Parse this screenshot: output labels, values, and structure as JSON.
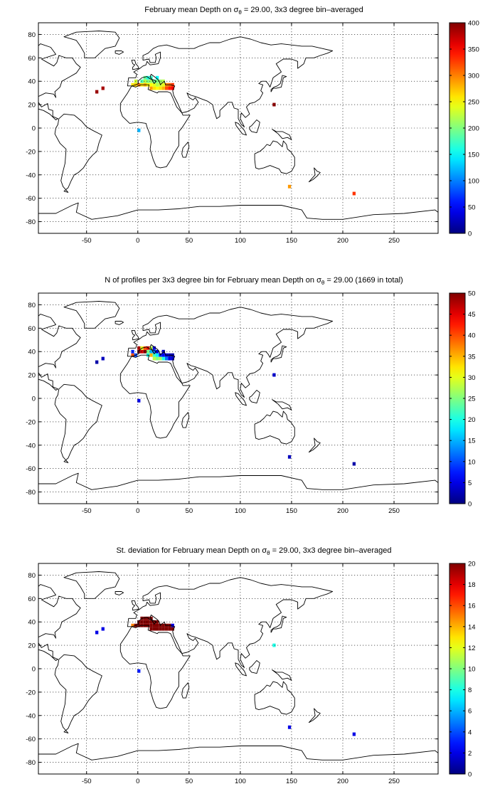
{
  "x_ticks": [
    "-50",
    "0",
    "50",
    "100",
    "150",
    "200",
    "250"
  ],
  "y_ticks": [
    "80",
    "60",
    "40",
    "20",
    "0",
    "-20",
    "-40",
    "-60",
    "-80"
  ],
  "map_extent": {
    "lon": [
      -97,
      293
    ],
    "lat": [
      -90,
      90
    ],
    "grid": true,
    "coastlines": true
  },
  "colormap": "jet",
  "chart_data": [
    {
      "type": "heatmap",
      "title": {
        "pre": "February mean Depth on ",
        "sym": "σ",
        "sub": "θ",
        "post": " = 29.00, 3x3 degree bin–averaged"
      },
      "clim": [
        0,
        400
      ],
      "colorbar_ticks": [
        "400",
        "350",
        "300",
        "250",
        "200",
        "150",
        "100",
        "50",
        "0"
      ],
      "cells": [
        {
          "lon": -5,
          "lat": 37,
          "v": 260
        },
        {
          "lon": -2,
          "lat": 37,
          "v": 270
        },
        {
          "lon": -2,
          "lat": 40,
          "v": 230
        },
        {
          "lon": 1,
          "lat": 37,
          "v": 300
        },
        {
          "lon": 4,
          "lat": 37,
          "v": 260
        },
        {
          "lon": 4,
          "lat": 40,
          "v": 180
        },
        {
          "lon": 7,
          "lat": 37,
          "v": 280
        },
        {
          "lon": 7,
          "lat": 40,
          "v": 220
        },
        {
          "lon": 7,
          "lat": 43,
          "v": 190
        },
        {
          "lon": 10,
          "lat": 37,
          "v": 250
        },
        {
          "lon": 10,
          "lat": 40,
          "v": 200
        },
        {
          "lon": 10,
          "lat": 43,
          "v": 160
        },
        {
          "lon": 13,
          "lat": 34,
          "v": 290
        },
        {
          "lon": 13,
          "lat": 37,
          "v": 250
        },
        {
          "lon": 13,
          "lat": 40,
          "v": 210
        },
        {
          "lon": 13,
          "lat": 43,
          "v": 170
        },
        {
          "lon": 16,
          "lat": 34,
          "v": 260
        },
        {
          "lon": 16,
          "lat": 37,
          "v": 240
        },
        {
          "lon": 16,
          "lat": 40,
          "v": 190
        },
        {
          "lon": 19,
          "lat": 34,
          "v": 250
        },
        {
          "lon": 19,
          "lat": 37,
          "v": 220
        },
        {
          "lon": 19,
          "lat": 40,
          "v": 200
        },
        {
          "lon": 19,
          "lat": 43,
          "v": 150
        },
        {
          "lon": 22,
          "lat": 34,
          "v": 260
        },
        {
          "lon": 22,
          "lat": 37,
          "v": 230
        },
        {
          "lon": 22,
          "lat": 40,
          "v": 210
        },
        {
          "lon": 25,
          "lat": 34,
          "v": 280
        },
        {
          "lon": 25,
          "lat": 37,
          "v": 240
        },
        {
          "lon": 25,
          "lat": 40,
          "v": 220
        },
        {
          "lon": 28,
          "lat": 34,
          "v": 320
        },
        {
          "lon": 28,
          "lat": 37,
          "v": 300
        },
        {
          "lon": 31,
          "lat": 34,
          "v": 340
        },
        {
          "lon": 31,
          "lat": 37,
          "v": 310
        },
        {
          "lon": 34,
          "lat": 34,
          "v": 350
        },
        {
          "lon": 34,
          "lat": 37,
          "v": 330
        },
        {
          "lon": -40,
          "lat": 31,
          "v": 390
        },
        {
          "lon": -34,
          "lat": 34,
          "v": 385
        },
        {
          "lon": 133,
          "lat": 20,
          "v": 395
        },
        {
          "lon": 1,
          "lat": -2,
          "v": 120
        },
        {
          "lon": 148,
          "lat": -50,
          "v": 290
        },
        {
          "lon": 211,
          "lat": -56,
          "v": 330
        }
      ]
    },
    {
      "type": "heatmap",
      "title": {
        "pre": "N of profiles per 3x3 degree bin for February mean Depth on ",
        "sym": "σ",
        "sub": "θ",
        "post": " = 29.00 (1669 in total)"
      },
      "clim": [
        0,
        50
      ],
      "colorbar_ticks": [
        "50",
        "45",
        "40",
        "35",
        "30",
        "25",
        "20",
        "15",
        "10",
        "5",
        "0"
      ],
      "cells": [
        {
          "lon": -5,
          "lat": 37,
          "v": 40
        },
        {
          "lon": -5,
          "lat": 40,
          "v": 8
        },
        {
          "lon": -2,
          "lat": 37,
          "v": 10
        },
        {
          "lon": 1,
          "lat": 40,
          "v": 50
        },
        {
          "lon": 1,
          "lat": 43,
          "v": 48
        },
        {
          "lon": 4,
          "lat": 40,
          "v": 46
        },
        {
          "lon": 4,
          "lat": 43,
          "v": 30
        },
        {
          "lon": 7,
          "lat": 40,
          "v": 50
        },
        {
          "lon": 7,
          "lat": 43,
          "v": 40
        },
        {
          "lon": 10,
          "lat": 43,
          "v": 45
        },
        {
          "lon": 10,
          "lat": 40,
          "v": 25
        },
        {
          "lon": 10,
          "lat": 37,
          "v": 20
        },
        {
          "lon": 13,
          "lat": 43,
          "v": 28
        },
        {
          "lon": 13,
          "lat": 40,
          "v": 15
        },
        {
          "lon": 13,
          "lat": 37,
          "v": 35
        },
        {
          "lon": 16,
          "lat": 43,
          "v": 5
        },
        {
          "lon": 16,
          "lat": 40,
          "v": 12
        },
        {
          "lon": 16,
          "lat": 37,
          "v": 22
        },
        {
          "lon": 16,
          "lat": 34,
          "v": 28
        },
        {
          "lon": 19,
          "lat": 40,
          "v": 4
        },
        {
          "lon": 19,
          "lat": 37,
          "v": 18
        },
        {
          "lon": 19,
          "lat": 34,
          "v": 25
        },
        {
          "lon": 22,
          "lat": 37,
          "v": 8
        },
        {
          "lon": 22,
          "lat": 34,
          "v": 27
        },
        {
          "lon": 25,
          "lat": 37,
          "v": 6
        },
        {
          "lon": 25,
          "lat": 40,
          "v": 3
        },
        {
          "lon": 25,
          "lat": 34,
          "v": 20
        },
        {
          "lon": 28,
          "lat": 37,
          "v": 4
        },
        {
          "lon": 28,
          "lat": 34,
          "v": 12
        },
        {
          "lon": 31,
          "lat": 37,
          "v": 3
        },
        {
          "lon": 31,
          "lat": 34,
          "v": 5
        },
        {
          "lon": 34,
          "lat": 37,
          "v": 2
        },
        {
          "lon": 34,
          "lat": 34,
          "v": 4
        },
        {
          "lon": -40,
          "lat": 31,
          "v": 2
        },
        {
          "lon": -34,
          "lat": 34,
          "v": 3
        },
        {
          "lon": 133,
          "lat": 20,
          "v": 4
        },
        {
          "lon": 1,
          "lat": -2,
          "v": 5
        },
        {
          "lon": 148,
          "lat": -50,
          "v": 3
        },
        {
          "lon": 211,
          "lat": -56,
          "v": 2
        }
      ]
    },
    {
      "type": "heatmap",
      "title": {
        "pre": "St. deviation for February mean Depth on ",
        "sym": "σ",
        "sub": "θ",
        "post": " = 29.00, 3x3 degree bin–averaged"
      },
      "clim": [
        0,
        20
      ],
      "colorbar_ticks": [
        "20",
        "18",
        "16",
        "14",
        "12",
        "10",
        "8",
        "6",
        "4",
        "2",
        "0"
      ],
      "cells": [
        {
          "lon": -5,
          "lat": 37,
          "v": 15
        },
        {
          "lon": -2,
          "lat": 37,
          "v": 20
        },
        {
          "lon": 1,
          "lat": 37,
          "v": 20
        },
        {
          "lon": 1,
          "lat": 40,
          "v": 20
        },
        {
          "lon": 4,
          "lat": 37,
          "v": 20
        },
        {
          "lon": 4,
          "lat": 40,
          "v": 20
        },
        {
          "lon": 4,
          "lat": 43,
          "v": 20
        },
        {
          "lon": 7,
          "lat": 37,
          "v": 20
        },
        {
          "lon": 7,
          "lat": 40,
          "v": 20
        },
        {
          "lon": 7,
          "lat": 43,
          "v": 20
        },
        {
          "lon": 10,
          "lat": 37,
          "v": 20
        },
        {
          "lon": 10,
          "lat": 40,
          "v": 20
        },
        {
          "lon": 10,
          "lat": 43,
          "v": 20
        },
        {
          "lon": 13,
          "lat": 34,
          "v": 20
        },
        {
          "lon": 13,
          "lat": 37,
          "v": 20
        },
        {
          "lon": 13,
          "lat": 40,
          "v": 20
        },
        {
          "lon": 13,
          "lat": 43,
          "v": 20
        },
        {
          "lon": 16,
          "lat": 34,
          "v": 20
        },
        {
          "lon": 16,
          "lat": 37,
          "v": 20
        },
        {
          "lon": 16,
          "lat": 40,
          "v": 20
        },
        {
          "lon": 19,
          "lat": 34,
          "v": 20
        },
        {
          "lon": 19,
          "lat": 37,
          "v": 20
        },
        {
          "lon": 19,
          "lat": 40,
          "v": 20
        },
        {
          "lon": 22,
          "lat": 34,
          "v": 20
        },
        {
          "lon": 22,
          "lat": 37,
          "v": 20
        },
        {
          "lon": 25,
          "lat": 34,
          "v": 20
        },
        {
          "lon": 25,
          "lat": 37,
          "v": 20
        },
        {
          "lon": 28,
          "lat": 34,
          "v": 20
        },
        {
          "lon": 28,
          "lat": 37,
          "v": 20
        },
        {
          "lon": 31,
          "lat": 34,
          "v": 20
        },
        {
          "lon": 31,
          "lat": 37,
          "v": 20
        },
        {
          "lon": 34,
          "lat": 34,
          "v": 20
        },
        {
          "lon": 34,
          "lat": 37,
          "v": 2
        },
        {
          "lon": -40,
          "lat": 31,
          "v": 2
        },
        {
          "lon": -34,
          "lat": 34,
          "v": 2
        },
        {
          "lon": 133,
          "lat": 20,
          "v": 8
        },
        {
          "lon": 1,
          "lat": -2,
          "v": 3
        },
        {
          "lon": 148,
          "lat": -50,
          "v": 2
        },
        {
          "lon": 211,
          "lat": -56,
          "v": 2
        }
      ]
    }
  ]
}
